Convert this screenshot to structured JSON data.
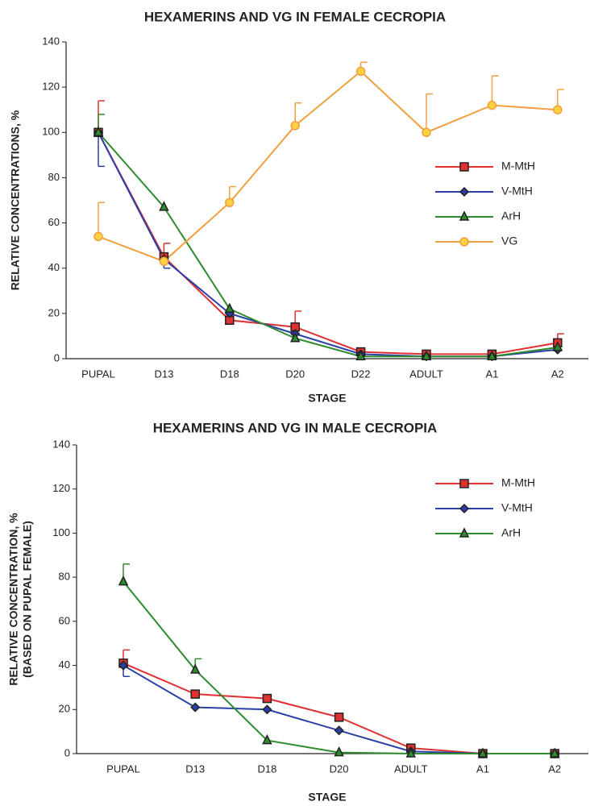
{
  "chart_data": [
    {
      "type": "line",
      "title": "HEXAMERINS AND VG IN FEMALE CECROPIA",
      "xlabel": "STAGE",
      "ylabel": [
        "RELATIVE CONCENTRATIONS, %"
      ],
      "categories": [
        "PUPAL",
        "D13",
        "D18",
        "D20",
        "D22",
        "ADULT",
        "A1",
        "A2"
      ],
      "ylim": [
        0,
        140
      ],
      "yticks": [
        0,
        20,
        40,
        60,
        80,
        100,
        120,
        140
      ],
      "series": [
        {
          "name": "M-MtH",
          "color": "#e03030",
          "marker": "square",
          "values": [
            100,
            45,
            17,
            14,
            3,
            2,
            2,
            7
          ],
          "err_up": [
            14,
            6,
            null,
            7,
            null,
            null,
            null,
            4
          ],
          "err_down": [
            null,
            null,
            null,
            null,
            null,
            null,
            null,
            null
          ]
        },
        {
          "name": "V-MtH",
          "color": "#2a3fa8",
          "marker": "diamond",
          "values": [
            100,
            44,
            20,
            11,
            2,
            1,
            1,
            4
          ],
          "err_up": [
            null,
            null,
            null,
            null,
            null,
            null,
            null,
            null
          ],
          "err_down": [
            15,
            4,
            null,
            null,
            null,
            null,
            null,
            null
          ]
        },
        {
          "name": "ArH",
          "color": "#2e8b2e",
          "marker": "triangle",
          "values": [
            100,
            67,
            22,
            9,
            1,
            1,
            1,
            5
          ],
          "err_up": [
            8,
            null,
            null,
            null,
            null,
            null,
            null,
            null
          ],
          "err_down": [
            null,
            null,
            null,
            null,
            null,
            null,
            null,
            null
          ]
        },
        {
          "name": "VG",
          "color": "#f0a040",
          "marker": "circle",
          "values": [
            54,
            43,
            69,
            103,
            127,
            100,
            112,
            110
          ],
          "err_up": [
            15,
            null,
            7,
            10,
            4,
            17,
            13,
            9
          ],
          "err_down": [
            null,
            null,
            null,
            null,
            null,
            null,
            null,
            null
          ]
        }
      ]
    },
    {
      "type": "line",
      "title": "HEXAMERINS AND VG IN MALE CECROPIA",
      "xlabel": "STAGE",
      "ylabel": [
        "RELATIVE CONCENTRATION, %",
        "(BASED ON PUPAL FEMALE)"
      ],
      "categories": [
        "PUPAL",
        "D13",
        "D18",
        "D20",
        "ADULT",
        "A1",
        "A2"
      ],
      "ylim": [
        0,
        140
      ],
      "yticks": [
        0,
        20,
        40,
        60,
        80,
        100,
        120,
        140
      ],
      "series": [
        {
          "name": "M-MtH",
          "color": "#e03030",
          "marker": "square",
          "values": [
            41,
            27,
            25,
            16.5,
            2.5,
            0,
            0
          ],
          "err_up": [
            6,
            null,
            null,
            null,
            null,
            null,
            null
          ],
          "err_down": [
            null,
            null,
            null,
            null,
            null,
            null,
            null
          ]
        },
        {
          "name": "V-MtH",
          "color": "#2a3fa8",
          "marker": "diamond",
          "values": [
            40,
            21,
            20,
            10.5,
            1,
            0,
            0
          ],
          "err_up": [
            null,
            null,
            null,
            null,
            null,
            null,
            null
          ],
          "err_down": [
            5,
            null,
            null,
            null,
            null,
            null,
            null
          ]
        },
        {
          "name": "ArH",
          "color": "#2e8b2e",
          "marker": "triangle",
          "values": [
            78,
            38,
            6,
            0.5,
            0,
            0,
            0
          ],
          "err_up": [
            8,
            5,
            null,
            null,
            null,
            null,
            null
          ],
          "err_down": [
            null,
            null,
            null,
            null,
            null,
            null,
            null
          ]
        }
      ]
    }
  ]
}
